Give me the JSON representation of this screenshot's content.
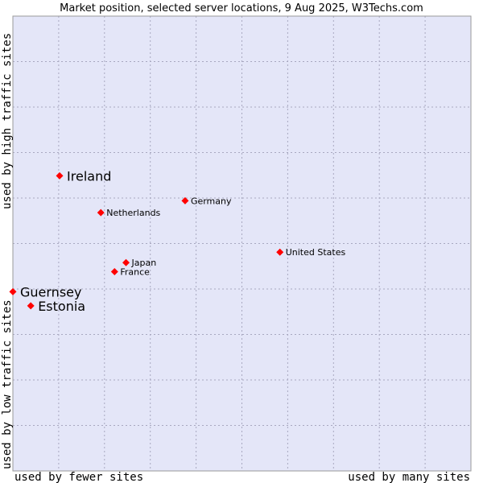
{
  "chart_data": {
    "type": "scatter",
    "title": "Market position, selected server locations, 9 Aug 2025, W3Techs.com",
    "x_label_low": "used by fewer sites",
    "x_label_high": "used by many sites",
    "y_label_low": "used by low traffic sites",
    "y_label_high": "used by high traffic sites",
    "xlim": [
      0,
      100
    ],
    "ylim": [
      0,
      100
    ],
    "grid": true,
    "marker_color": "#ff0000",
    "plot_background": "#e4e6f8",
    "points": [
      {
        "label": "Ireland",
        "x": 10.2,
        "y": 64.9,
        "highlight": true
      },
      {
        "label": "Germany",
        "x": 37.6,
        "y": 59.4,
        "highlight": false
      },
      {
        "label": "Netherlands",
        "x": 19.2,
        "y": 56.8,
        "highlight": false
      },
      {
        "label": "United States",
        "x": 58.3,
        "y": 48.1,
        "highlight": false
      },
      {
        "label": "Japan",
        "x": 24.7,
        "y": 45.8,
        "highlight": false
      },
      {
        "label": "France",
        "x": 22.2,
        "y": 43.8,
        "highlight": false
      },
      {
        "label": "Guernsey",
        "x": 0.0,
        "y": 39.4,
        "highlight": true
      },
      {
        "label": "Estonia",
        "x": 3.9,
        "y": 36.3,
        "highlight": true
      }
    ]
  }
}
